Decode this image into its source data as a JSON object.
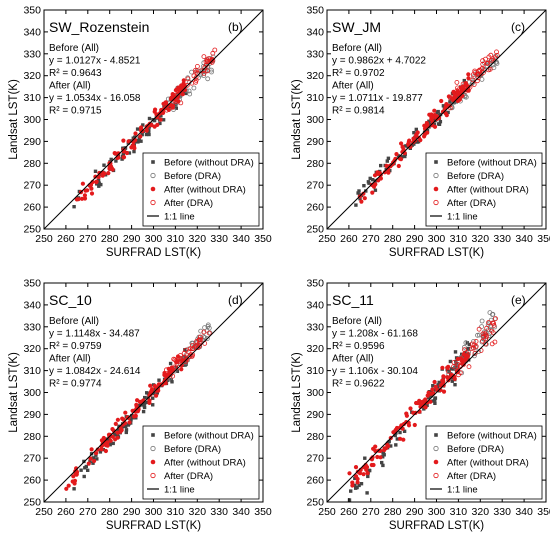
{
  "chart_data": [
    {
      "type": "scatter",
      "title": "SW_Rozenstein",
      "panel_tag": "(b)",
      "xlabel": "SURFRAD LST(K)",
      "ylabel": "Landsat LST(K)",
      "xlim": [
        250,
        350
      ],
      "ylim": [
        250,
        350
      ],
      "xticks": [
        "250",
        "260",
        "270",
        "280",
        "290",
        "300",
        "310",
        "320",
        "330",
        "340",
        "350"
      ],
      "yticks": [
        "250",
        "260",
        "270",
        "280",
        "290",
        "300",
        "310",
        "320",
        "330",
        "340",
        "350"
      ],
      "grid": false,
      "legend_position": "lower-right",
      "annotations": [
        "Before (All)",
        "y = 1.0127x - 4.8521",
        "R² = 0.9643",
        "After (All)",
        "y = 1.0534x - 16.058",
        "R² = 0.9715"
      ],
      "series": [
        {
          "name": "Before (without DRA)",
          "marker": "filled-square",
          "color": "#444444",
          "slope": 1.0127,
          "intercept": -4.8521,
          "n": 95,
          "xmin": 262,
          "xmax": 315,
          "spread": 2.2
        },
        {
          "name": "Before (DRA)",
          "marker": "open-circle",
          "color": "#777777",
          "slope": 1.0127,
          "intercept": -4.8521,
          "n": 45,
          "xmin": 305,
          "xmax": 328,
          "spread": 2.0
        },
        {
          "name": "After (without DRA)",
          "marker": "filled-circle",
          "color": "#e31a1c",
          "slope": 1.0534,
          "intercept": -16.058,
          "n": 110,
          "xmin": 262,
          "xmax": 315,
          "spread": 2.0
        },
        {
          "name": "After (DRA)",
          "marker": "open-circle",
          "color": "#e31a1c",
          "slope": 1.0534,
          "intercept": -16.058,
          "n": 45,
          "xmin": 305,
          "xmax": 328,
          "spread": 2.0
        },
        {
          "name": "1:1 line",
          "marker": "line",
          "color": "#000000"
        }
      ]
    },
    {
      "type": "scatter",
      "title": "SW_JM",
      "panel_tag": "(c)",
      "xlabel": "SURFRAD LST(K)",
      "ylabel": "Landsat LST(K)",
      "xlim": [
        250,
        350
      ],
      "ylim": [
        250,
        350
      ],
      "xticks": [
        "250",
        "260",
        "270",
        "280",
        "290",
        "300",
        "310",
        "320",
        "330",
        "340",
        "350"
      ],
      "yticks": [
        "250",
        "260",
        "270",
        "280",
        "290",
        "300",
        "310",
        "320",
        "330",
        "340",
        "350"
      ],
      "grid": false,
      "legend_position": "lower-right",
      "annotations": [
        "Before (All)",
        "y = 0.9862x + 4.7022",
        "R² = 0.9702",
        "After (All)",
        "y = 1.0711x - 19.877",
        "R² = 0.9814"
      ],
      "series": [
        {
          "name": "Before (without DRA)",
          "marker": "filled-square",
          "color": "#444444",
          "slope": 0.9862,
          "intercept": 4.7022,
          "n": 95,
          "xmin": 262,
          "xmax": 315,
          "spread": 2.2
        },
        {
          "name": "Before (DRA)",
          "marker": "open-circle",
          "color": "#777777",
          "slope": 0.9862,
          "intercept": 4.7022,
          "n": 45,
          "xmin": 305,
          "xmax": 328,
          "spread": 2.0
        },
        {
          "name": "After (without DRA)",
          "marker": "filled-circle",
          "color": "#e31a1c",
          "slope": 1.0711,
          "intercept": -19.877,
          "n": 110,
          "xmin": 262,
          "xmax": 315,
          "spread": 2.0
        },
        {
          "name": "After (DRA)",
          "marker": "open-circle",
          "color": "#e31a1c",
          "slope": 1.0711,
          "intercept": -19.877,
          "n": 45,
          "xmin": 305,
          "xmax": 328,
          "spread": 2.0
        },
        {
          "name": "1:1 line",
          "marker": "line",
          "color": "#000000"
        }
      ]
    },
    {
      "type": "scatter",
      "title": "SC_10",
      "panel_tag": "(d)",
      "xlabel": "SURFRAD LST(K)",
      "ylabel": "Landsat LST(K)",
      "xlim": [
        250,
        350
      ],
      "ylim": [
        250,
        350
      ],
      "xticks": [
        "250",
        "260",
        "270",
        "280",
        "290",
        "300",
        "310",
        "320",
        "330",
        "340",
        "350"
      ],
      "yticks": [
        "250",
        "260",
        "270",
        "280",
        "290",
        "300",
        "310",
        "320",
        "330",
        "340",
        "350"
      ],
      "grid": false,
      "legend_position": "lower-right",
      "annotations": [
        "Before (All)",
        "y = 1.1148x - 34.487",
        "R² = 0.9759",
        "After (All)",
        "y = 1.0842x - 24.614",
        "R² = 0.9774"
      ],
      "series": [
        {
          "name": "Before (without DRA)",
          "marker": "filled-square",
          "color": "#444444",
          "slope": 1.1148,
          "intercept": -34.487,
          "n": 95,
          "xmin": 260,
          "xmax": 315,
          "spread": 2.2
        },
        {
          "name": "Before (DRA)",
          "marker": "open-circle",
          "color": "#777777",
          "slope": 1.1148,
          "intercept": -34.487,
          "n": 45,
          "xmin": 305,
          "xmax": 326,
          "spread": 2.0
        },
        {
          "name": "After (without DRA)",
          "marker": "filled-circle",
          "color": "#e31a1c",
          "slope": 1.0842,
          "intercept": -24.614,
          "n": 110,
          "xmin": 260,
          "xmax": 315,
          "spread": 2.0
        },
        {
          "name": "After (DRA)",
          "marker": "open-circle",
          "color": "#e31a1c",
          "slope": 1.0842,
          "intercept": -24.614,
          "n": 45,
          "xmin": 305,
          "xmax": 326,
          "spread": 2.0
        },
        {
          "name": "1:1 line",
          "marker": "line",
          "color": "#000000"
        }
      ]
    },
    {
      "type": "scatter",
      "title": "SC_11",
      "panel_tag": "(e)",
      "xlabel": "SURFRAD LST(K)",
      "ylabel": "Landsat LST(K)",
      "xlim": [
        250,
        350
      ],
      "ylim": [
        250,
        350
      ],
      "xticks": [
        "250",
        "260",
        "270",
        "280",
        "290",
        "300",
        "310",
        "320",
        "330",
        "340",
        "350"
      ],
      "yticks": [
        "250",
        "260",
        "270",
        "280",
        "290",
        "300",
        "310",
        "320",
        "330",
        "340",
        "350"
      ],
      "grid": false,
      "legend_position": "lower-right",
      "annotations": [
        "Before (All)",
        "y = 1.208x - 61.168",
        "R² = 0.9596",
        "After (All)",
        "y = 1.106x - 30.104",
        "R² = 0.9622"
      ],
      "series": [
        {
          "name": "Before (without DRA)",
          "marker": "filled-square",
          "color": "#444444",
          "slope": 1.208,
          "intercept": -61.168,
          "n": 95,
          "xmin": 260,
          "xmax": 315,
          "spread": 3.0
        },
        {
          "name": "Before (DRA)",
          "marker": "open-circle",
          "color": "#777777",
          "slope": 1.208,
          "intercept": -61.168,
          "n": 45,
          "xmin": 305,
          "xmax": 327,
          "spread": 3.0
        },
        {
          "name": "After (without DRA)",
          "marker": "filled-circle",
          "color": "#e31a1c",
          "slope": 1.106,
          "intercept": -30.104,
          "n": 110,
          "xmin": 260,
          "xmax": 315,
          "spread": 2.6
        },
        {
          "name": "After (DRA)",
          "marker": "open-circle",
          "color": "#e31a1c",
          "slope": 1.106,
          "intercept": -30.104,
          "n": 45,
          "xmin": 305,
          "xmax": 327,
          "spread": 3.0
        },
        {
          "name": "1:1 line",
          "marker": "line",
          "color": "#000000"
        }
      ]
    }
  ]
}
